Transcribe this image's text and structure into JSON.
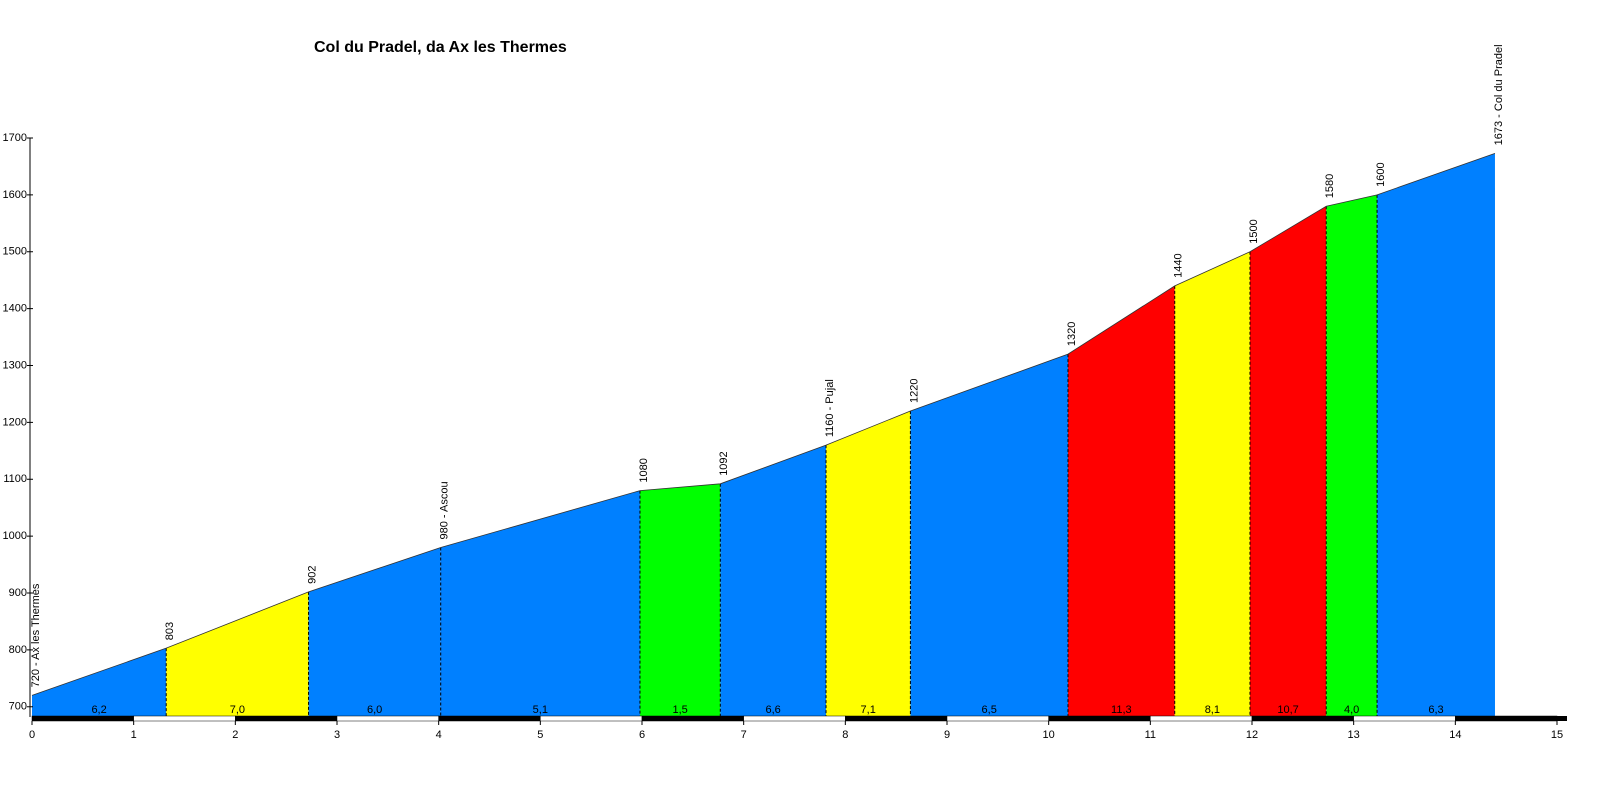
{
  "chart_data": {
    "type": "elevation_profile",
    "title": "Col du Pradel, da Ax les Thermes",
    "x": [
      0,
      1.32,
      2.72,
      4.02,
      5.98,
      6.77,
      7.81,
      8.64,
      10.19,
      11.24,
      11.98,
      12.73,
      13.23,
      14.39
    ],
    "values": [
      720,
      803,
      902,
      980,
      1080,
      1092,
      1160,
      1220,
      1320,
      1440,
      1500,
      1580,
      1600,
      1673
    ],
    "value_labels": [
      "720 - Ax les Thermes",
      "803",
      "902",
      "980 - Ascou",
      "1080",
      "1092",
      "1160 - Pujal",
      "1220",
      "1320",
      "1440",
      "1500",
      "1580",
      "1600",
      "1673 - Col du Pradel"
    ],
    "segment_labels": [
      "6,2",
      "7,0",
      "6,0",
      "5,1",
      "1,5",
      "6,6",
      "7,1",
      "6,5",
      "11,3",
      "8,1",
      "10,7",
      "4,0",
      "6,3"
    ],
    "segment_colors": [
      "#0080ff",
      "#ffff00",
      "#0080ff",
      "#0080ff",
      "#00ff00",
      "#0080ff",
      "#ffff00",
      "#0080ff",
      "#ff0000",
      "#ffff00",
      "#ff0000",
      "#00ff00",
      "#0080ff"
    ],
    "xlim": [
      0,
      15
    ],
    "xticks": [
      0,
      1,
      2,
      3,
      4,
      5,
      6,
      7,
      8,
      9,
      10,
      11,
      12,
      13,
      14,
      15
    ],
    "ylim": [
      682,
      1700
    ],
    "yticks": [
      700,
      800,
      900,
      1000,
      1100,
      1200,
      1300,
      1400,
      1500,
      1600,
      1700
    ]
  }
}
